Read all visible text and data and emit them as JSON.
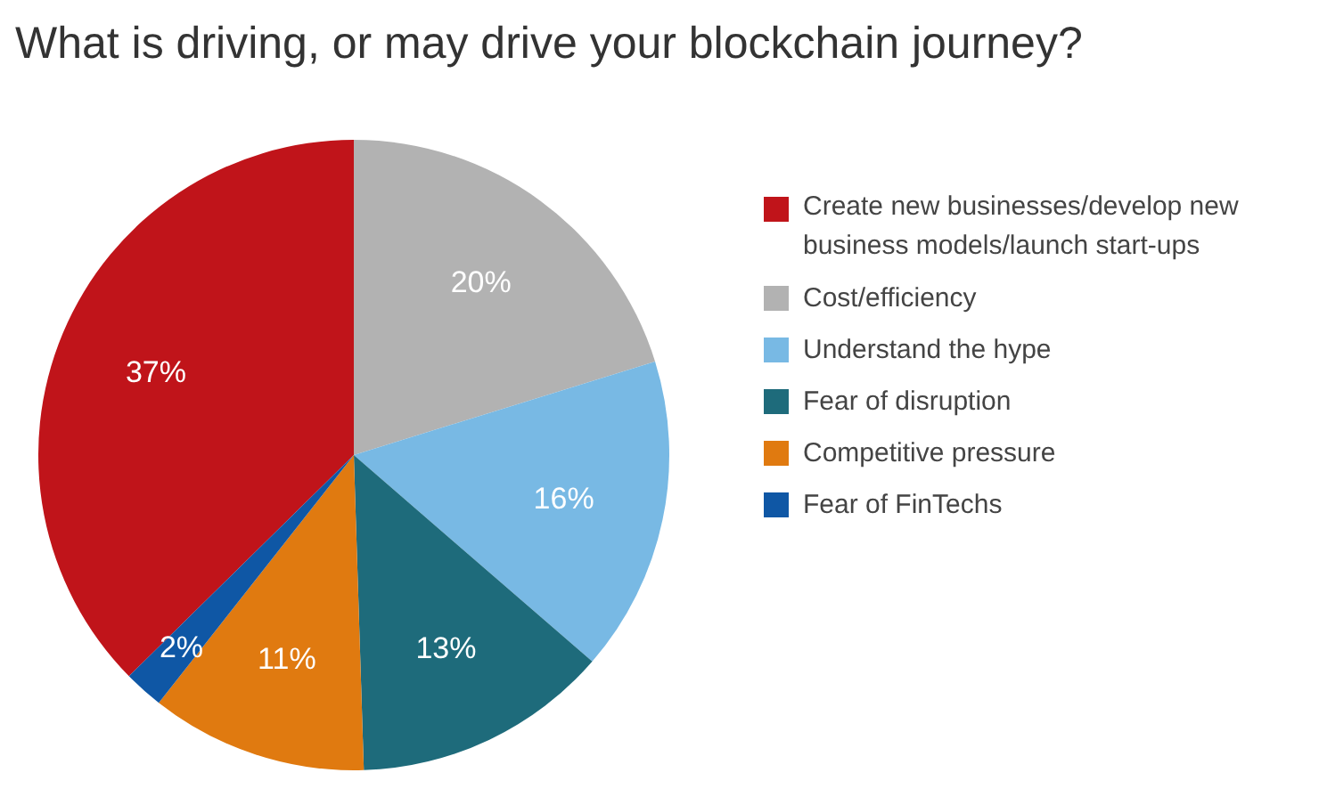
{
  "chart_data": {
    "type": "pie",
    "title": "What is driving, or may drive your blockchain journey?",
    "categories": [
      "Create new businesses/develop new business models/launch start-ups",
      "Cost/efficiency",
      "Understand the hype",
      "Fear of disruption",
      "Competitive pressure",
      "Fear of FinTechs"
    ],
    "values": [
      37,
      20,
      16,
      13,
      11,
      2
    ],
    "colors": [
      "#c0141a",
      "#b2b2b2",
      "#78b9e4",
      "#1e6b7b",
      "#e07a10",
      "#0f57a5"
    ],
    "value_labels": [
      "37%",
      "20%",
      "16%",
      "13%",
      "11%",
      "2%"
    ],
    "legend": "right"
  }
}
